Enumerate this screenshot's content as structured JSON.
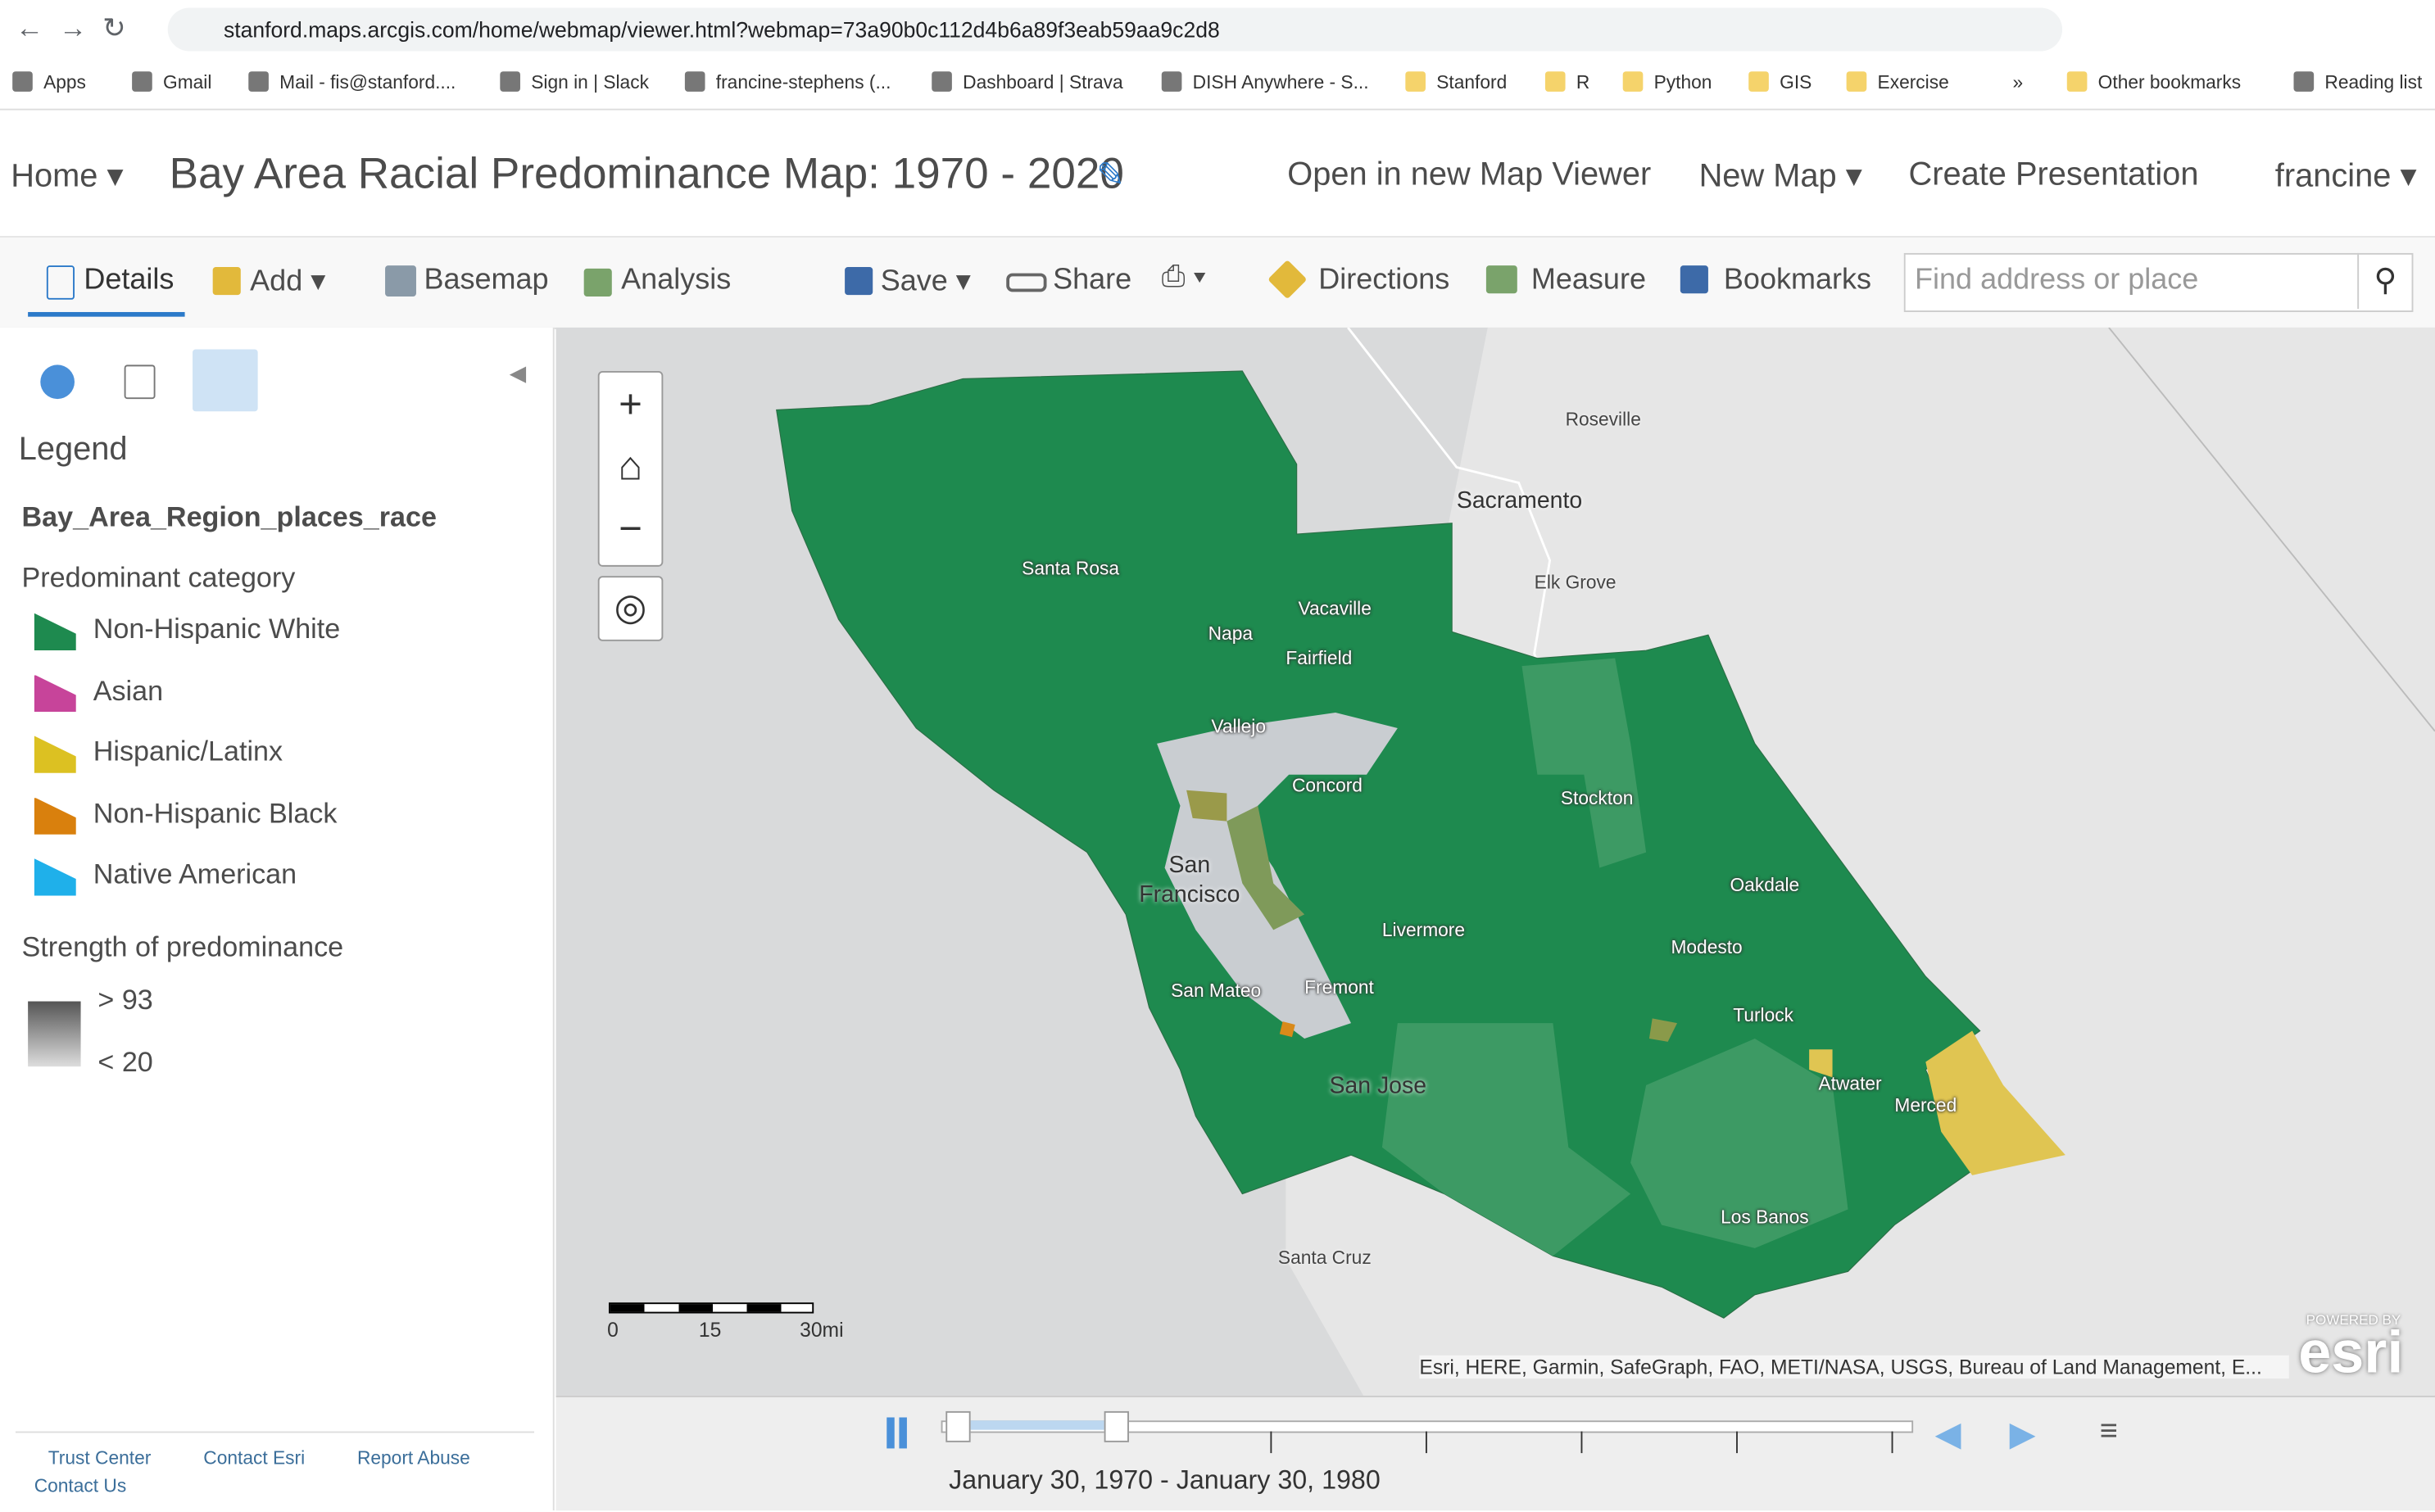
{
  "browser": {
    "url": "stanford.maps.arcgis.com/home/webmap/viewer.html?webmap=73a90b0c112d4b6a89f3eab59aa9c2d8",
    "bookmarks": [
      "Apps",
      "Gmail",
      "Mail - fis@stanford....",
      "Sign in | Slack",
      "francine-stephens (...",
      "Dashboard | Strava",
      "DISH Anywhere - S...",
      "Stanford",
      "R",
      "Python",
      "GIS",
      "Exercise",
      "»",
      "Other bookmarks",
      "Reading list"
    ]
  },
  "header": {
    "home": "Home",
    "title": "Bay Area Racial Predominance Map: 1970 - 2020",
    "links": [
      "Open in new Map Viewer",
      "New Map",
      "Create Presentation"
    ],
    "user": "francine"
  },
  "toolbar": {
    "items": [
      "Details",
      "Add",
      "Basemap",
      "Analysis",
      "Save",
      "Share",
      "Directions",
      "Measure",
      "Bookmarks"
    ],
    "search_placeholder": "Find address or place"
  },
  "legend": {
    "title": "Legend",
    "layer": "Bay_Area_Region_places_race",
    "category_title": "Predominant category",
    "categories": [
      {
        "label": "Non-Hispanic White",
        "color": "#1e8a4f"
      },
      {
        "label": "Asian",
        "color": "#c7449a"
      },
      {
        "label": "Hispanic/Latinx",
        "color": "#dcc122"
      },
      {
        "label": "Non-Hispanic Black",
        "color": "#d9800d"
      },
      {
        "label": "Native American",
        "color": "#1fb0ea"
      }
    ],
    "strength_title": "Strength of predominance",
    "strength_labels": [
      "> 93",
      "< 20"
    ]
  },
  "footer_links": [
    "Trust Center",
    "Contact Esri",
    "Report Abuse",
    "Contact Us"
  ],
  "map": {
    "labels": [
      "Roseville",
      "Sacramento",
      "Elk Grove",
      "Santa Rosa",
      "Vacaville",
      "Napa",
      "Fairfield",
      "Vallejo",
      "Concord",
      "Stockton",
      "San Francisco",
      "Oakdale",
      "Livermore",
      "Modesto",
      "San Mateo",
      "Fremont",
      "Turlock",
      "San Jose",
      "Atwater",
      "Merced",
      "Los Banos",
      "Santa Cruz"
    ],
    "scale_labels": [
      "0",
      "15",
      "30mi"
    ],
    "attribution": "Esri, HERE, Garmin, SafeGraph, FAO, METI/NASA, USGS, Bureau of Land Management, E...",
    "logo_top": "POWERED BY",
    "logo": "esri"
  },
  "time_slider": {
    "range": "January 30, 1970 - January 30, 1980"
  }
}
